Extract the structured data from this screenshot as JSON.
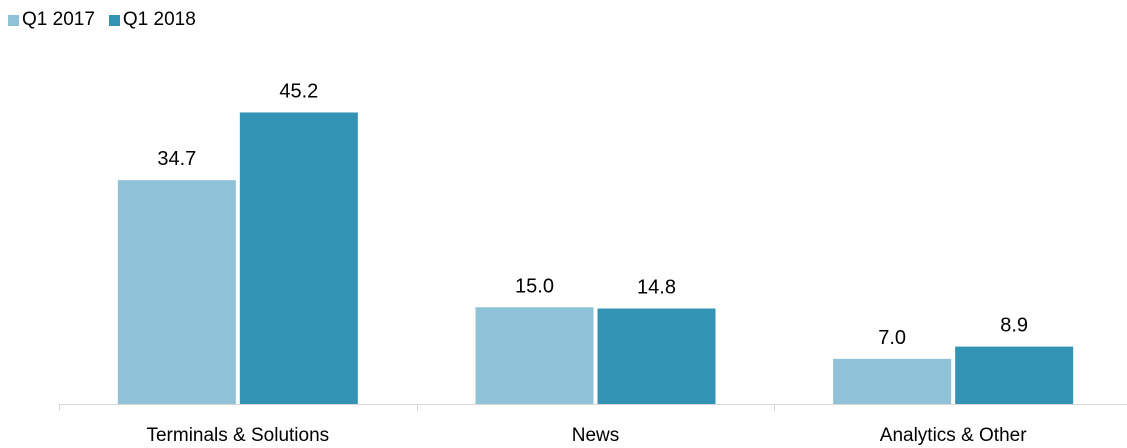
{
  "chart_data": {
    "type": "bar",
    "title": "",
    "xlabel": "",
    "ylabel": "",
    "ylim": [
      0,
      50
    ],
    "grid": false,
    "legend_position": "top-left",
    "categories": [
      "Terminals & Solutions",
      "News",
      "Analytics & Other"
    ],
    "series": [
      {
        "name": "Q1 2017",
        "color": "#8fc1d7",
        "values": [
          34.7,
          15.0,
          7.0
        ],
        "labels": [
          "34.7",
          "15.0",
          "7.0"
        ]
      },
      {
        "name": "Q1 2018",
        "color": "#3393b4",
        "values": [
          45.2,
          14.8,
          8.9
        ],
        "labels": [
          "45.2",
          "14.8",
          "8.9"
        ]
      }
    ],
    "axis_color": "#d9d9d9"
  }
}
